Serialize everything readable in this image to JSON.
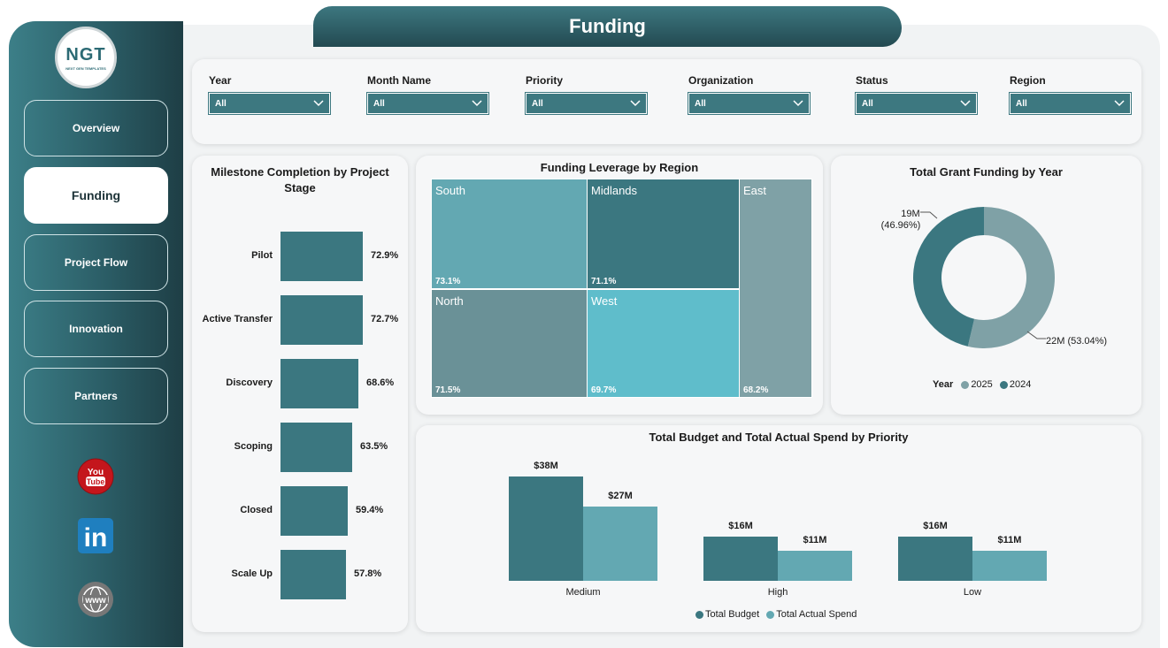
{
  "page": {
    "title": "Funding"
  },
  "logo": {
    "main": "NGT",
    "sub": "NEXT GEN TEMPLATES"
  },
  "nav": [
    {
      "label": "Overview",
      "active": false
    },
    {
      "label": "Funding",
      "active": true
    },
    {
      "label": "Project Flow",
      "active": false
    },
    {
      "label": "Innovation",
      "active": false
    },
    {
      "label": "Partners",
      "active": false
    }
  ],
  "social": [
    {
      "name": "youtube-icon",
      "text": "You Tube"
    },
    {
      "name": "linkedin-icon",
      "text": "in"
    },
    {
      "name": "website-icon",
      "text": "www"
    }
  ],
  "filters": [
    {
      "label": "Year",
      "value": "All"
    },
    {
      "label": "Month Name",
      "value": "All"
    },
    {
      "label": "Priority",
      "value": "All"
    },
    {
      "label": "Organization",
      "value": "All"
    },
    {
      "label": "Status",
      "value": "All"
    },
    {
      "label": "Region",
      "value": "All"
    }
  ],
  "colors": {
    "primary": "#3b7780",
    "secondary": "#63a8b2",
    "light": "#5fbdcb",
    "grey": "#6a9197",
    "sage": "#7fa1a6"
  },
  "chart_data": [
    {
      "type": "bar",
      "orientation": "horizontal",
      "title": "Milestone Completion by Project Stage",
      "categories": [
        "Pilot",
        "Active Transfer",
        "Discovery",
        "Scoping",
        "Closed",
        "Scale Up"
      ],
      "values": [
        72.9,
        72.7,
        68.6,
        63.5,
        59.4,
        57.8
      ],
      "labels": [
        "72.9%",
        "72.7%",
        "68.6%",
        "63.5%",
        "59.4%",
        "57.8%"
      ]
    },
    {
      "type": "heatmap",
      "subtype": "treemap",
      "title": "Funding Leverage by Region",
      "regions": [
        {
          "name": "South",
          "label": "73.1%",
          "value": 73.1
        },
        {
          "name": "Midlands",
          "label": "71.1%",
          "value": 71.1
        },
        {
          "name": "East",
          "label": "68.2%",
          "value": 68.2
        },
        {
          "name": "North",
          "label": "71.5%",
          "value": 71.5
        },
        {
          "name": "West",
          "label": "69.7%",
          "value": 69.7
        }
      ]
    },
    {
      "type": "pie",
      "subtype": "donut",
      "title": "Total Grant Funding by Year",
      "slices": [
        {
          "name": "2025",
          "value": 22,
          "label": "22M (53.04%)"
        },
        {
          "name": "2024",
          "value": 19,
          "label_line1": "19M",
          "label_line2": "(46.96%)"
        }
      ],
      "legend_title": "Year"
    },
    {
      "type": "bar",
      "title": "Total Budget and Total Actual Spend by Priority",
      "categories": [
        "Medium",
        "High",
        "Low"
      ],
      "series": [
        {
          "name": "Total Budget",
          "values": [
            38,
            16,
            16
          ],
          "labels": [
            "$38M",
            "$16M",
            "$16M"
          ]
        },
        {
          "name": "Total Actual Spend",
          "values": [
            27,
            11,
            11
          ],
          "labels": [
            "$27M",
            "$11M",
            "$11M"
          ]
        }
      ]
    }
  ]
}
